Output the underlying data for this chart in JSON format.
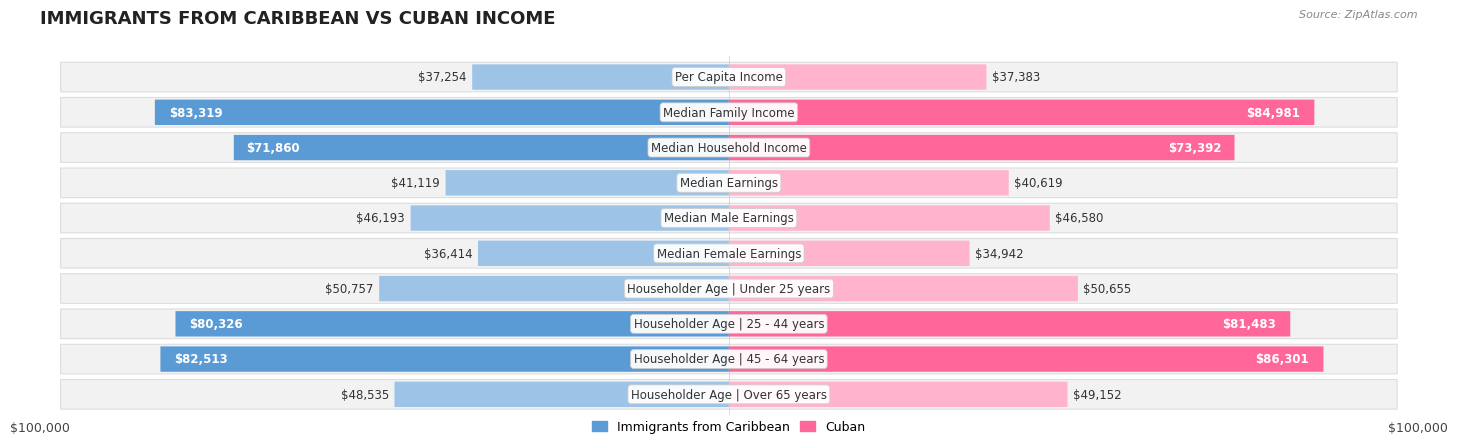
{
  "title": "IMMIGRANTS FROM CARIBBEAN VS CUBAN INCOME",
  "source": "Source: ZipAtlas.com",
  "categories": [
    "Per Capita Income",
    "Median Family Income",
    "Median Household Income",
    "Median Earnings",
    "Median Male Earnings",
    "Median Female Earnings",
    "Householder Age | Under 25 years",
    "Householder Age | 25 - 44 years",
    "Householder Age | 45 - 64 years",
    "Householder Age | Over 65 years"
  ],
  "left_values": [
    37254,
    83319,
    71860,
    41119,
    46193,
    36414,
    50757,
    80326,
    82513,
    48535
  ],
  "right_values": [
    37383,
    84981,
    73392,
    40619,
    46580,
    34942,
    50655,
    81483,
    86301,
    49152
  ],
  "left_labels": [
    "$37,254",
    "$83,319",
    "$71,860",
    "$41,119",
    "$46,193",
    "$36,414",
    "$50,757",
    "$80,326",
    "$82,513",
    "$48,535"
  ],
  "right_labels": [
    "$37,383",
    "$84,981",
    "$73,392",
    "$40,619",
    "$46,580",
    "$34,942",
    "$50,655",
    "$81,483",
    "$86,301",
    "$49,152"
  ],
  "max_value": 100000,
  "left_color_full": "#5B9BD5",
  "left_color_light": "#9DC3E6",
  "right_color_full": "#FF6699",
  "right_color_light": "#FFB3CC",
  "threshold": 70000,
  "background_color": "#ffffff",
  "row_bg": "#f2f2f2",
  "row_border": "#dddddd",
  "legend_left": "Immigrants from Caribbean",
  "legend_right": "Cuban",
  "bar_height": 0.72,
  "title_fontsize": 13,
  "label_fontsize": 8.5,
  "cat_fontsize": 8.5,
  "axis_label": "$100,000"
}
